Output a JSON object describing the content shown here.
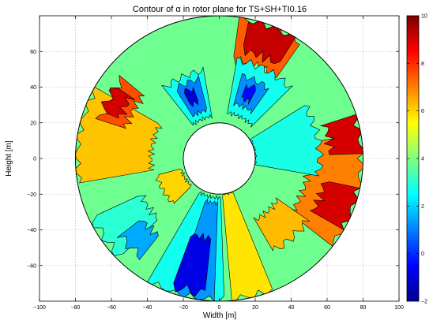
{
  "chart_data": {
    "type": "heatmap",
    "subtype": "filled-contour-annulus",
    "title": "Contour of α in rotor plane for TS+SH+TI0.16",
    "xlabel": "Width [m]",
    "ylabel": "Height [m]",
    "xlim": [
      -100,
      100
    ],
    "ylim": [
      -80,
      80
    ],
    "xticks": [
      -100,
      -80,
      -60,
      -40,
      -20,
      0,
      20,
      40,
      60,
      80,
      100
    ],
    "yticks": [
      -60,
      -40,
      -20,
      0,
      20,
      40,
      60
    ],
    "grid": true,
    "rotor_outer_radius": 80,
    "hub_radius": 20,
    "colorbar": {
      "colormap": "jet",
      "range": [
        -2,
        10
      ],
      "ticks": [
        -2,
        0,
        2,
        4,
        6,
        8,
        10
      ]
    },
    "contour_levels": [
      -2,
      -1,
      0,
      1,
      2,
      3,
      4,
      5,
      6,
      7,
      8,
      9,
      10
    ],
    "regions": [
      {
        "level": 3.8,
        "shape": "annulus",
        "r": [
          20,
          80
        ],
        "a": [
          0,
          360
        ]
      },
      {
        "level": 7.4,
        "shape": "sector",
        "r": [
          56,
          80
        ],
        "a": [
          55,
          82
        ]
      },
      {
        "level": 9.2,
        "shape": "sector",
        "r": [
          62,
          80
        ],
        "a": [
          58,
          78
        ]
      },
      {
        "level": 7.0,
        "shape": "sector",
        "r": [
          50,
          80
        ],
        "a": [
          -38,
          10
        ]
      },
      {
        "level": 9.0,
        "shape": "sector",
        "r": [
          60,
          80
        ],
        "a": [
          -30,
          -12
        ]
      },
      {
        "level": 9.0,
        "shape": "sector",
        "r": [
          62,
          80
        ],
        "a": [
          2,
          18
        ]
      },
      {
        "level": 6.2,
        "shape": "sector",
        "r": [
          38,
          80
        ],
        "a": [
          150,
          190
        ]
      },
      {
        "level": 7.6,
        "shape": "sector",
        "r": [
          55,
          70
        ],
        "a": [
          140,
          162
        ]
      },
      {
        "level": 9.0,
        "shape": "sector",
        "r": [
          60,
          70
        ],
        "a": [
          145,
          158
        ]
      },
      {
        "level": 6.0,
        "shape": "sector",
        "r": [
          22,
          36
        ],
        "a": [
          195,
          225
        ]
      },
      {
        "level": 2.8,
        "shape": "sector",
        "r": [
          20,
          56
        ],
        "a": [
          -10,
          32
        ]
      },
      {
        "level": 2.7,
        "shape": "sector",
        "r": [
          26,
          56
        ],
        "a": [
          45,
          80
        ]
      },
      {
        "level": 1.2,
        "shape": "sector",
        "r": [
          32,
          48
        ],
        "a": [
          55,
          75
        ]
      },
      {
        "level": -0.4,
        "shape": "sector",
        "r": [
          36,
          44
        ],
        "a": [
          62,
          70
        ]
      },
      {
        "level": 2.7,
        "shape": "sector",
        "r": [
          24,
          50
        ],
        "a": [
          100,
          128
        ]
      },
      {
        "level": 1.0,
        "shape": "sector",
        "r": [
          28,
          46
        ],
        "a": [
          104,
          122
        ]
      },
      {
        "level": -1.0,
        "shape": "sector",
        "r": [
          34,
          42
        ],
        "a": [
          110,
          118
        ]
      },
      {
        "level": 5.8,
        "shape": "sector",
        "r": [
          20,
          80
        ],
        "a": [
          275,
          292
        ]
      },
      {
        "level": 2.7,
        "shape": "sector",
        "r": [
          22,
          80
        ],
        "a": [
          240,
          272
        ]
      },
      {
        "level": 1.3,
        "shape": "sector",
        "r": [
          25,
          80
        ],
        "a": [
          252,
          268
        ]
      },
      {
        "level": -0.8,
        "shape": "sector",
        "r": [
          45,
          76
        ],
        "a": [
          250,
          264
        ]
      },
      {
        "level": 3.0,
        "shape": "sector",
        "r": [
          48,
          78
        ],
        "a": [
          205,
          225
        ]
      },
      {
        "level": 1.5,
        "shape": "sector",
        "r": [
          55,
          70
        ],
        "a": [
          218,
          232
        ]
      },
      {
        "level": 6.3,
        "shape": "sector",
        "r": [
          40,
          60
        ],
        "a": [
          300,
          325
        ]
      }
    ]
  }
}
